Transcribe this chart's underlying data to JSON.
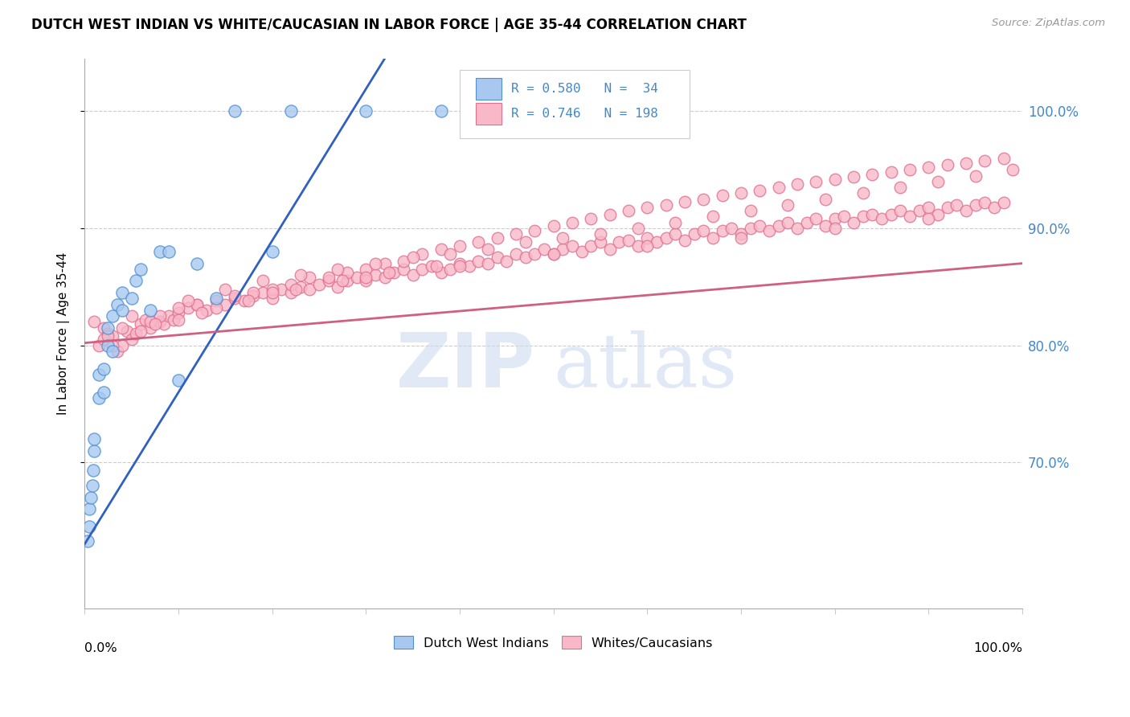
{
  "title": "DUTCH WEST INDIAN VS WHITE/CAUCASIAN IN LABOR FORCE | AGE 35-44 CORRELATION CHART",
  "source": "Source: ZipAtlas.com",
  "ylabel": "In Labor Force | Age 35-44",
  "xmin": 0.0,
  "xmax": 1.0,
  "ymin": 0.575,
  "ymax": 1.045,
  "yticks": [
    0.7,
    0.8,
    0.9,
    1.0
  ],
  "ytick_labels": [
    "70.0%",
    "80.0%",
    "90.0%",
    "100.0%"
  ],
  "xticks": [
    0.0,
    0.1,
    0.2,
    0.3,
    0.4,
    0.5,
    0.6,
    0.7,
    0.8,
    0.9,
    1.0
  ],
  "color_blue_fill": "#A8C8F0",
  "color_blue_edge": "#5090D0",
  "color_pink_fill": "#F8B8C8",
  "color_pink_edge": "#E07090",
  "color_blue_line": "#3060C0",
  "color_pink_line": "#D06080",
  "R_blue": 0.58,
  "N_blue": 34,
  "R_pink": 0.746,
  "N_pink": 198,
  "legend_label_blue": "Dutch West Indians",
  "legend_label_pink": "Whites/Caucasians",
  "watermark_zip": "ZIP",
  "watermark_atlas": "atlas",
  "blue_x": [
    0.003,
    0.005,
    0.005,
    0.007,
    0.008,
    0.009,
    0.01,
    0.01,
    0.015,
    0.015,
    0.02,
    0.02,
    0.025,
    0.025,
    0.03,
    0.03,
    0.035,
    0.04,
    0.04,
    0.05,
    0.055,
    0.06,
    0.07,
    0.08,
    0.09,
    0.1,
    0.12,
    0.14,
    0.16,
    0.2,
    0.22,
    0.3,
    0.38,
    0.55
  ],
  "blue_y": [
    0.633,
    0.645,
    0.66,
    0.67,
    0.68,
    0.693,
    0.71,
    0.72,
    0.755,
    0.775,
    0.76,
    0.78,
    0.8,
    0.815,
    0.795,
    0.825,
    0.835,
    0.83,
    0.845,
    0.84,
    0.855,
    0.865,
    0.83,
    0.88,
    0.88,
    0.77,
    0.87,
    0.84,
    1.0,
    0.88,
    1.0,
    1.0,
    1.0,
    1.0
  ],
  "blue_line_x0": 0.0,
  "blue_line_y0": 0.63,
  "blue_line_x1": 0.32,
  "blue_line_y1": 1.045,
  "pink_line_x0": 0.0,
  "pink_line_y0": 0.802,
  "pink_line_x1": 1.0,
  "pink_line_y1": 0.87,
  "pink_x": [
    0.01,
    0.015,
    0.02,
    0.025,
    0.03,
    0.035,
    0.04,
    0.045,
    0.05,
    0.055,
    0.06,
    0.065,
    0.07,
    0.08,
    0.085,
    0.09,
    0.095,
    0.1,
    0.11,
    0.12,
    0.13,
    0.14,
    0.15,
    0.16,
    0.17,
    0.18,
    0.19,
    0.2,
    0.21,
    0.22,
    0.23,
    0.24,
    0.25,
    0.26,
    0.27,
    0.28,
    0.29,
    0.3,
    0.31,
    0.32,
    0.33,
    0.34,
    0.35,
    0.36,
    0.37,
    0.38,
    0.39,
    0.4,
    0.41,
    0.42,
    0.43,
    0.44,
    0.45,
    0.46,
    0.47,
    0.48,
    0.49,
    0.5,
    0.51,
    0.52,
    0.53,
    0.54,
    0.55,
    0.56,
    0.57,
    0.58,
    0.59,
    0.6,
    0.61,
    0.62,
    0.63,
    0.64,
    0.65,
    0.66,
    0.67,
    0.68,
    0.69,
    0.7,
    0.71,
    0.72,
    0.73,
    0.74,
    0.75,
    0.76,
    0.77,
    0.78,
    0.79,
    0.8,
    0.81,
    0.82,
    0.83,
    0.84,
    0.85,
    0.86,
    0.87,
    0.88,
    0.89,
    0.9,
    0.91,
    0.92,
    0.93,
    0.94,
    0.95,
    0.96,
    0.97,
    0.98,
    0.02,
    0.04,
    0.06,
    0.08,
    0.1,
    0.12,
    0.14,
    0.16,
    0.18,
    0.2,
    0.22,
    0.24,
    0.26,
    0.28,
    0.3,
    0.32,
    0.34,
    0.36,
    0.38,
    0.4,
    0.42,
    0.44,
    0.46,
    0.48,
    0.5,
    0.52,
    0.54,
    0.56,
    0.58,
    0.6,
    0.62,
    0.64,
    0.66,
    0.68,
    0.7,
    0.72,
    0.74,
    0.76,
    0.78,
    0.8,
    0.82,
    0.84,
    0.86,
    0.88,
    0.9,
    0.92,
    0.94,
    0.96,
    0.98,
    0.03,
    0.07,
    0.11,
    0.15,
    0.19,
    0.23,
    0.27,
    0.31,
    0.35,
    0.39,
    0.43,
    0.47,
    0.51,
    0.55,
    0.59,
    0.63,
    0.67,
    0.71,
    0.75,
    0.79,
    0.83,
    0.87,
    0.91,
    0.95,
    0.99,
    0.05,
    0.1,
    0.2,
    0.3,
    0.4,
    0.5,
    0.6,
    0.7,
    0.8,
    0.9,
    0.025,
    0.075,
    0.125,
    0.175,
    0.225,
    0.275,
    0.325,
    0.375
  ],
  "pink_y": [
    0.82,
    0.8,
    0.815,
    0.81,
    0.808,
    0.795,
    0.8,
    0.812,
    0.805,
    0.81,
    0.818,
    0.822,
    0.815,
    0.82,
    0.818,
    0.825,
    0.822,
    0.828,
    0.832,
    0.835,
    0.83,
    0.838,
    0.835,
    0.84,
    0.838,
    0.842,
    0.845,
    0.84,
    0.848,
    0.845,
    0.85,
    0.848,
    0.852,
    0.855,
    0.85,
    0.855,
    0.858,
    0.855,
    0.86,
    0.858,
    0.862,
    0.865,
    0.86,
    0.865,
    0.868,
    0.862,
    0.865,
    0.87,
    0.868,
    0.872,
    0.87,
    0.875,
    0.872,
    0.878,
    0.875,
    0.878,
    0.882,
    0.878,
    0.882,
    0.885,
    0.88,
    0.885,
    0.888,
    0.882,
    0.888,
    0.89,
    0.885,
    0.892,
    0.888,
    0.892,
    0.895,
    0.89,
    0.895,
    0.898,
    0.892,
    0.898,
    0.9,
    0.895,
    0.9,
    0.902,
    0.898,
    0.902,
    0.905,
    0.9,
    0.905,
    0.908,
    0.902,
    0.908,
    0.91,
    0.905,
    0.91,
    0.912,
    0.908,
    0.912,
    0.915,
    0.91,
    0.915,
    0.918,
    0.912,
    0.918,
    0.92,
    0.915,
    0.92,
    0.922,
    0.918,
    0.922,
    0.805,
    0.815,
    0.812,
    0.825,
    0.822,
    0.835,
    0.832,
    0.842,
    0.845,
    0.848,
    0.852,
    0.858,
    0.858,
    0.862,
    0.865,
    0.87,
    0.872,
    0.878,
    0.882,
    0.885,
    0.888,
    0.892,
    0.895,
    0.898,
    0.902,
    0.905,
    0.908,
    0.912,
    0.915,
    0.918,
    0.92,
    0.923,
    0.925,
    0.928,
    0.93,
    0.932,
    0.935,
    0.938,
    0.94,
    0.942,
    0.944,
    0.946,
    0.948,
    0.95,
    0.952,
    0.954,
    0.956,
    0.958,
    0.96,
    0.8,
    0.82,
    0.838,
    0.848,
    0.855,
    0.86,
    0.865,
    0.87,
    0.875,
    0.878,
    0.882,
    0.888,
    0.892,
    0.895,
    0.9,
    0.905,
    0.91,
    0.915,
    0.92,
    0.925,
    0.93,
    0.935,
    0.94,
    0.945,
    0.95,
    0.825,
    0.832,
    0.845,
    0.858,
    0.868,
    0.878,
    0.885,
    0.892,
    0.9,
    0.908,
    0.808,
    0.818,
    0.828,
    0.838,
    0.848,
    0.855,
    0.862,
    0.868
  ]
}
